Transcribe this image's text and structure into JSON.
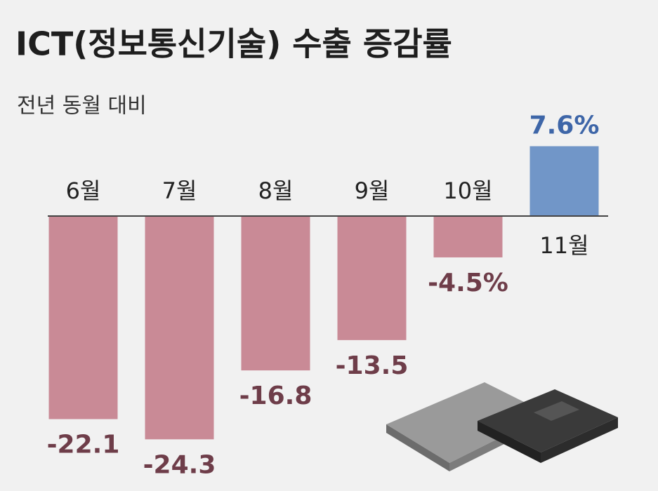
{
  "chart_data": {
    "type": "bar",
    "title": "ICT(정보통신기술) 수출 증감률",
    "subtitle": "전년 동월 대비",
    "categories": [
      "6월",
      "7월",
      "8월",
      "9월",
      "10월",
      "11월"
    ],
    "values": [
      -22.1,
      -24.3,
      -16.8,
      -13.5,
      -4.5,
      7.6
    ],
    "value_labels": [
      "-22.1",
      "-24.3",
      "-16.8",
      "-13.5",
      "-4.5%",
      "7.6%"
    ],
    "colors": [
      "#c98a96",
      "#c98a96",
      "#c98a96",
      "#c98a96",
      "#c98a96",
      "#7196c8"
    ]
  }
}
